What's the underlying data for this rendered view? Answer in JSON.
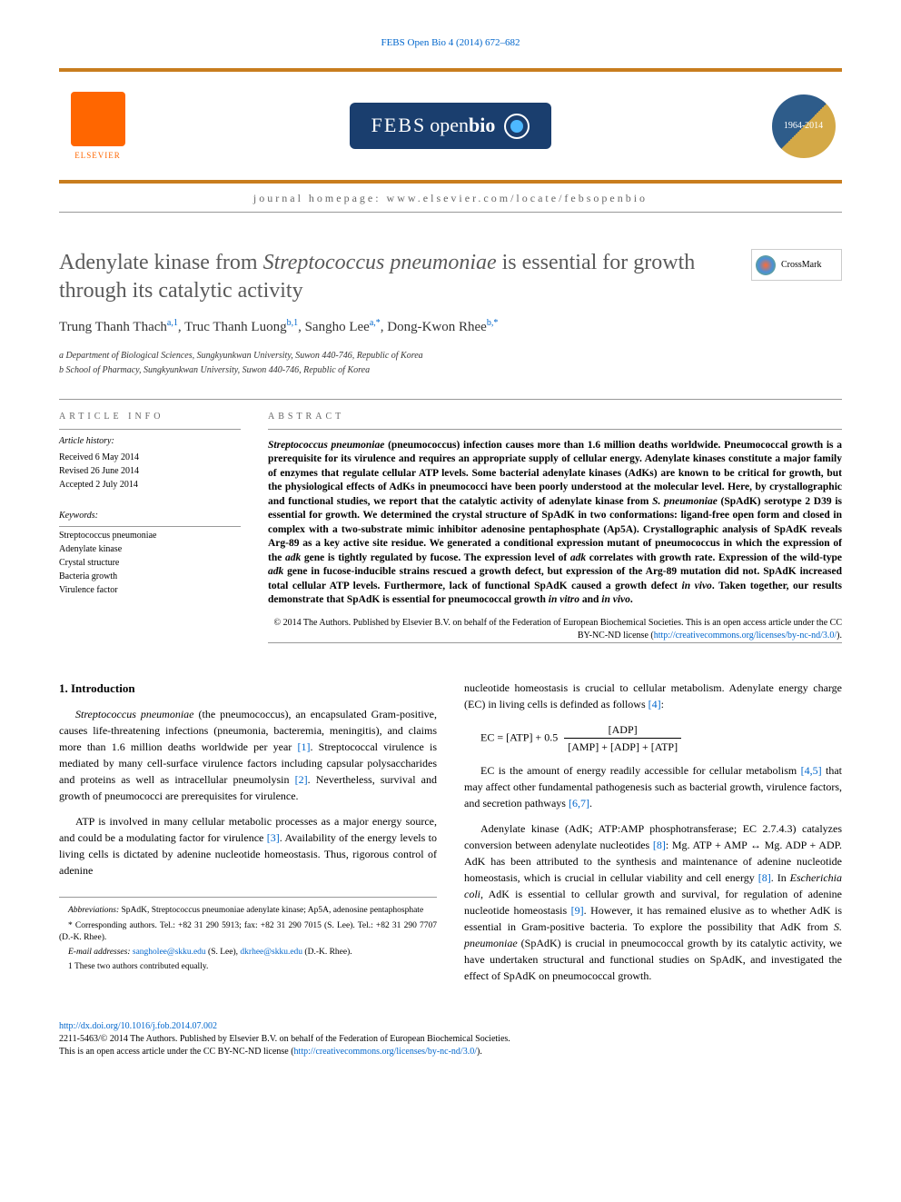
{
  "top_link": "FEBS Open Bio 4 (2014) 672–682",
  "header": {
    "elsevier_label": "ELSEVIER",
    "journal_name_parts": {
      "febs": "FEBS",
      "open": "open",
      "bio": "bio"
    },
    "anniversary": {
      "years_a": "1964",
      "years_b": "2014"
    },
    "homepage_label": "journal homepage: www.elsevier.com/locate/febsopenbio"
  },
  "article": {
    "title_pre": "Adenylate kinase from ",
    "title_italic": "Streptococcus pneumoniae",
    "title_post": " is essential for growth through its catalytic activity",
    "crossmark_label": "CrossMark",
    "authors_html": "Trung Thanh Thach",
    "author1": "Trung Thanh Thach",
    "author1_sup": "a,1",
    "author2": "Truc Thanh Luong",
    "author2_sup": "b,1",
    "author3": "Sangho Lee",
    "author3_sup": "a,*",
    "author4": "Dong-Kwon Rhee",
    "author4_sup": "b,*",
    "affiliations": [
      "a Department of Biological Sciences, Sungkyunkwan University, Suwon 440-746, Republic of Korea",
      "b School of Pharmacy, Sungkyunkwan University, Suwon 440-746, Republic of Korea"
    ]
  },
  "article_info": {
    "section_label": "ARTICLE INFO",
    "history_label": "Article history:",
    "history": [
      "Received 6 May 2014",
      "Revised 26 June 2014",
      "Accepted 2 July 2014"
    ],
    "keywords_label": "Keywords:",
    "keywords": [
      "Streptococcus pneumoniae",
      "Adenylate kinase",
      "Crystal structure",
      "Bacteria growth",
      "Virulence factor"
    ]
  },
  "abstract": {
    "section_label": "ABSTRACT",
    "text_parts": {
      "p1a": "Streptococcus pneumoniae",
      "p1b": " (pneumococcus) infection causes more than 1.6 million deaths worldwide. Pneumococcal growth is a prerequisite for its virulence and requires an appropriate supply of cellular energy. Adenylate kinases constitute a major family of enzymes that regulate cellular ATP levels. Some bacterial adenylate kinases (AdKs) are known to be critical for growth, but the physiological effects of AdKs in pneumococci have been poorly understood at the molecular level. Here, by crystallographic and functional studies, we report that the catalytic activity of adenylate kinase from ",
      "p1c": "S. pneumoniae",
      "p1d": " (SpAdK) serotype 2 D39 is essential for growth. We determined the crystal structure of SpAdK in two conformations: ligand-free open form and closed in complex with a two-substrate mimic inhibitor adenosine pentaphosphate (Ap5A). Crystallographic analysis of SpAdK reveals Arg-89 as a key active site residue. We generated a conditional expression mutant of pneumococcus in which the expression of the ",
      "p1e": "adk",
      "p1f": " gene is tightly regulated by fucose. The expression level of ",
      "p1g": "adk",
      "p1h": " correlates with growth rate. Expression of the wild-type ",
      "p1i": "adk",
      "p1j": " gene in fucose-inducible strains rescued a growth defect, but expression of the Arg-89 mutation did not. SpAdK increased total cellular ATP levels. Furthermore, lack of functional SpAdK caused a growth defect ",
      "p1k": "in vivo",
      "p1l": ". Taken together, our results demonstrate that SpAdK is essential for pneumococcal growth ",
      "p1m": "in vitro",
      "p1n": " and ",
      "p1o": "in vivo",
      "p1p": "."
    },
    "copyright": "© 2014 The Authors. Published by Elsevier B.V. on behalf of the Federation of European Biochemical Societies. This is an open access article under the CC BY-NC-ND license (",
    "copyright_link": "http://creativecommons.org/licenses/by-nc-nd/3.0/",
    "copyright_close": ")."
  },
  "intro": {
    "heading": "1. Introduction",
    "para1_a": "Streptococcus pneumoniae",
    "para1_b": " (the pneumococcus), an encapsulated Gram-positive, causes life-threatening infections (pneumonia, bacteremia, meningitis), and claims more than 1.6 million deaths worldwide per year ",
    "cite1": "[1]",
    "para1_c": ". Streptococcal virulence is mediated by many cell-surface virulence factors including capsular polysaccharides and proteins as well as intracellular pneumolysin ",
    "cite2": "[2]",
    "para1_d": ". Nevertheless, survival and growth of pneumococci are prerequisites for virulence.",
    "para2_a": "ATP is involved in many cellular metabolic processes as a major energy source, and could be a modulating factor for virulence ",
    "cite3": "[3]",
    "para2_b": ". Availability of the energy levels to living cells is dictated by adenine nucleotide homeostasis. Thus, rigorous control of adenine",
    "para3_a": "nucleotide homeostasis is crucial to cellular metabolism. Adenylate energy charge (EC) in living cells is definded as follows ",
    "cite4": "[4]",
    "para3_b": ":",
    "eq_lhs": "EC = [ATP] + 0.5",
    "eq_num": "[ADP]",
    "eq_den": "[AMP] + [ADP] + [ATP]",
    "para4_a": "EC is the amount of energy readily accessible for cellular metabolism ",
    "cite45": "[4,5]",
    "para4_b": " that may affect other fundamental pathogenesis such as bacterial growth, virulence factors, and secretion pathways ",
    "cite67": "[6,7]",
    "para4_c": ".",
    "para5_a": "Adenylate kinase (AdK; ATP:AMP phosphotransferase; EC 2.7.4.3) catalyzes conversion between adenylate nucleotides ",
    "cite8": "[8]",
    "para5_b": ": Mg. ATP + AMP ↔ Mg. ADP + ADP. AdK has been attributed to the synthesis and maintenance of adenine nucleotide homeostasis, which is crucial in cellular viability and cell energy ",
    "cite8b": "[8]",
    "para5_c": ". In ",
    "para5_ital": "Escherichia coli",
    "para5_d": ", AdK is essential to cellular growth and survival, for regulation of adenine nucleotide homeostasis ",
    "cite9": "[9]",
    "para5_e": ". However, it has remained elusive as to whether AdK is essential in Gram-positive bacteria. To explore the possibility that AdK from ",
    "para5_ital2": "S. pneumoniae",
    "para5_f": " (SpAdK) is crucial in pneumococcal growth by its catalytic activity, we have undertaken structural and functional studies on SpAdK, and investigated the effect of SpAdK on pneumococcal growth."
  },
  "footnotes": {
    "abbrev_label": "Abbreviations:",
    "abbrev_text": " SpAdK, Streptococcus pneumoniae adenylate kinase; Ap5A, adenosine pentaphosphate",
    "corr_label": "* Corresponding authors. Tel.: +82 31 290 5913; fax: +82 31 290 7015 (S. Lee). Tel.: +82 31 290 7707 (D.-K. Rhee).",
    "email_label": "E-mail addresses:",
    "email1": "sangholee@skku.edu",
    "email1_who": " (S. Lee), ",
    "email2": "dkrhee@skku.edu",
    "email2_who": " (D.-K. Rhee).",
    "equal": "1 These two authors contributed equally."
  },
  "bottom": {
    "doi": "http://dx.doi.org/10.1016/j.fob.2014.07.002",
    "issn_line": "2211-5463/© 2014 The Authors. Published by Elsevier B.V. on behalf of the Federation of European Biochemical Societies.",
    "license_pre": "This is an open access article under the CC BY-NC-ND license (",
    "license_link": "http://creativecommons.org/licenses/by-nc-nd/3.0/",
    "license_post": ")."
  },
  "colors": {
    "banner_border": "#c87d1e",
    "link": "#0066cc",
    "title_gray": "#5a5a5a",
    "elsevier_orange": "#ff6600",
    "journal_bg": "#1a3e6e"
  },
  "typography": {
    "body_font": "Georgia, Times New Roman, serif",
    "title_size_pt": 24,
    "body_size_pt": 12,
    "abstract_size_pt": 11.5,
    "footnote_size_pt": 9.5
  }
}
